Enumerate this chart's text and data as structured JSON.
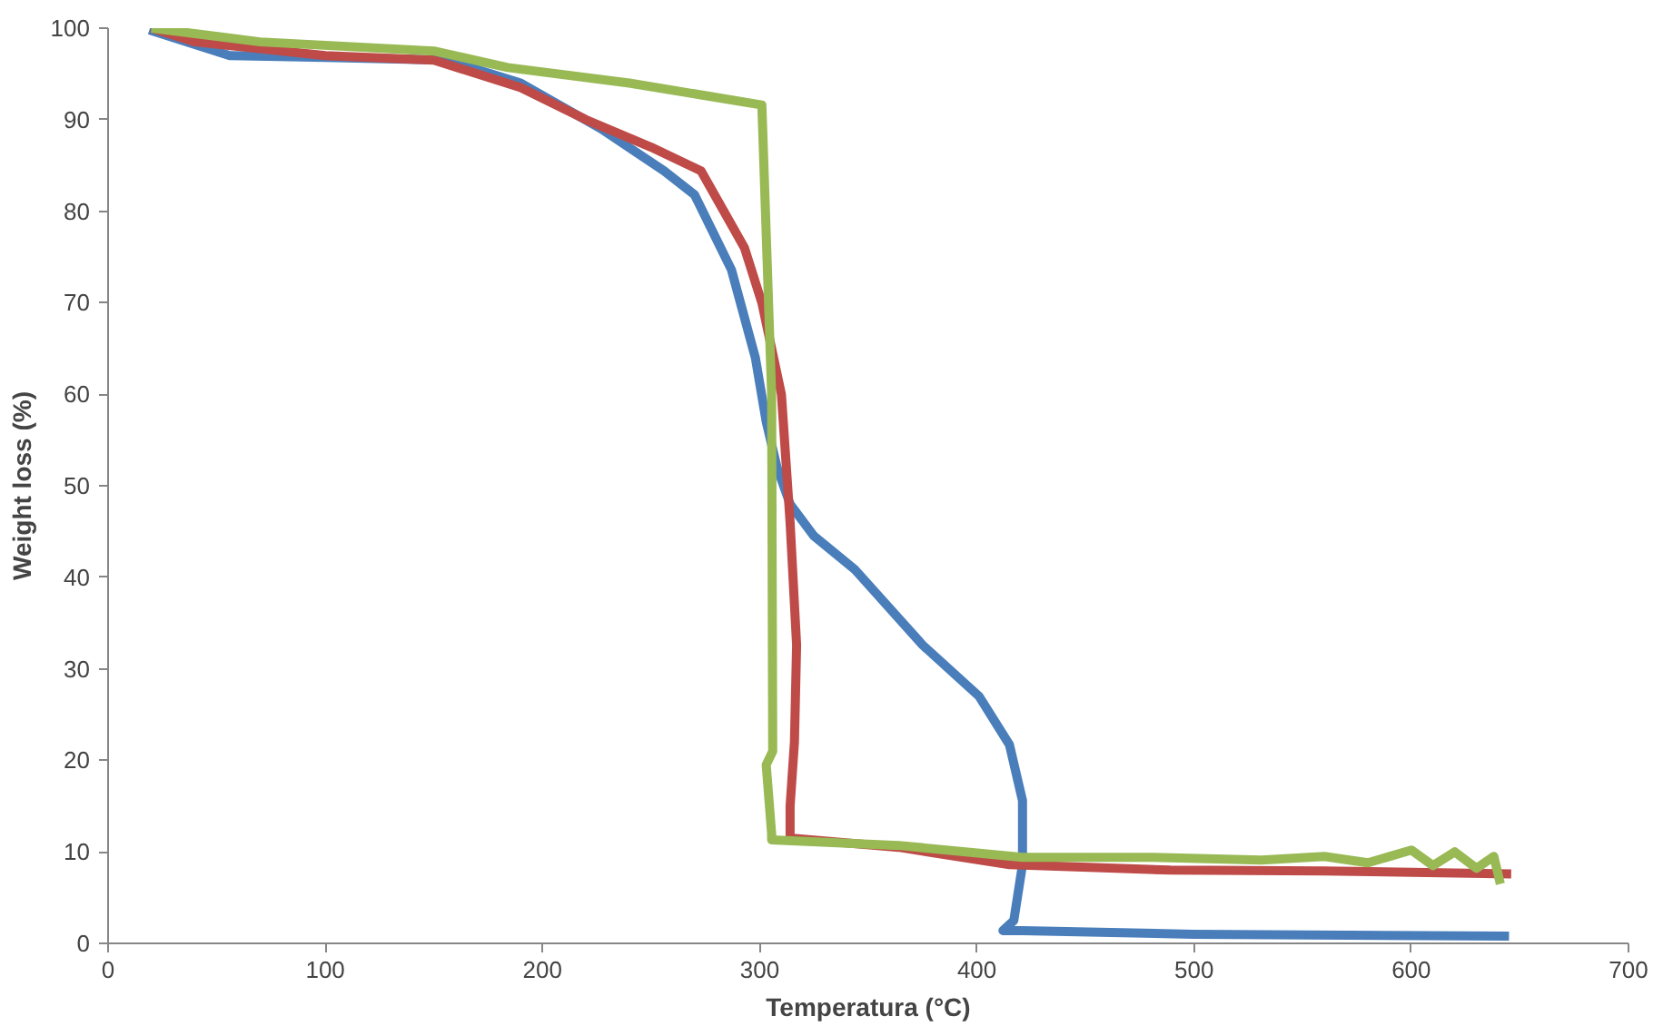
{
  "chart_data": {
    "type": "line",
    "xlabel": "Temperatura (°C)",
    "ylabel": "Weight loss (%)",
    "xlim": [
      0,
      700
    ],
    "xticks": [
      0,
      100,
      200,
      300,
      400,
      500,
      600,
      700
    ],
    "ylim": [
      0,
      100
    ],
    "yticks": [
      0,
      10,
      20,
      30,
      40,
      50,
      60,
      70,
      80,
      90,
      100
    ],
    "grid": false,
    "marker": "none",
    "line_style": "solid",
    "series": [
      {
        "color": "#4a7ebb",
        "x": [
          19,
          56,
          100,
          156,
          190,
          227,
          256,
          270,
          287,
          298,
          303,
          308,
          314,
          325,
          344,
          375,
          401,
          415,
          421,
          421,
          417,
          412,
          421,
          500,
          645
        ],
        "values": [
          99.8,
          97,
          96.8,
          96.5,
          94,
          89,
          84.4,
          81.8,
          73.6,
          64,
          57,
          52,
          48,
          44.5,
          40.8,
          32.6,
          27,
          21.7,
          15.6,
          8.6,
          2.5,
          1.4,
          1.4,
          1,
          0.8
        ]
      },
      {
        "color": "#be4b48",
        "x": [
          20,
          40,
          100,
          150,
          190,
          220,
          250,
          273,
          293,
          301,
          310,
          314,
          317,
          316,
          314,
          314,
          364,
          415,
          489,
          560,
          646
        ],
        "values": [
          100,
          98.5,
          97,
          96.5,
          93.5,
          90,
          87,
          84.4,
          76,
          70,
          60,
          46,
          32.6,
          22,
          15,
          11.5,
          10.5,
          8.6,
          8,
          7.9,
          7.6
        ]
      },
      {
        "color": "#98b954",
        "x": [
          20,
          70,
          150,
          184,
          240,
          301,
          305.5,
          306,
          303,
          305.5,
          305.5,
          364,
          421,
          481,
          531,
          560,
          580,
          600,
          610,
          620,
          630,
          638,
          641
        ],
        "values": [
          100,
          98.5,
          97.5,
          95.7,
          94,
          91.6,
          60,
          21,
          19.5,
          12,
          11.3,
          10.7,
          9.4,
          9.4,
          9.1,
          9.5,
          8.8,
          10.2,
          8.5,
          10,
          8.2,
          9.5,
          6.5
        ]
      }
    ]
  }
}
